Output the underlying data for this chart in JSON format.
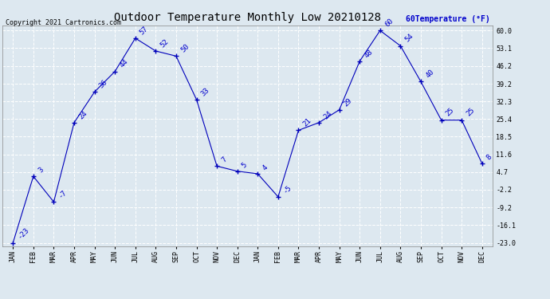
{
  "title": "Outdoor Temperature Monthly Low 20210128",
  "copyright": "Copyright 2021 Cartronics.com",
  "ylabel": "Temperature (°F)",
  "ylabel_prefix": "60",
  "months_year1": [
    "JAN",
    "FEB",
    "MAR",
    "APR",
    "MAY",
    "JUN",
    "JUL",
    "AUG",
    "SEP",
    "OCT",
    "NOV",
    "DEC"
  ],
  "months_year2": [
    "JAN",
    "FEB",
    "MAR",
    "APR",
    "MAY",
    "JUN",
    "JUL",
    "AUG",
    "SEP",
    "OCT",
    "NOV",
    "DEC"
  ],
  "values_year1": [
    -23,
    3,
    -7,
    24,
    36,
    44,
    57,
    52,
    50,
    33,
    7,
    5
  ],
  "values_year2": [
    4,
    -5,
    21,
    24,
    29,
    48,
    60,
    54,
    40,
    25,
    25,
    8
  ],
  "ylim_min": -23.0,
  "ylim_max": 60.0,
  "yticks": [
    -23.0,
    -16.1,
    -9.2,
    -2.2,
    4.7,
    11.6,
    18.5,
    25.4,
    32.3,
    39.2,
    46.2,
    53.1,
    60.0
  ],
  "line_color": "#0000bb",
  "marker": "+",
  "bg_color": "#dde8f0",
  "grid_color": "#ffffff",
  "title_color": "#000000",
  "label_color": "#0000cc",
  "title_fontsize": 10,
  "tick_fontsize": 6,
  "label_fontsize": 6.5,
  "copyright_fontsize": 6
}
